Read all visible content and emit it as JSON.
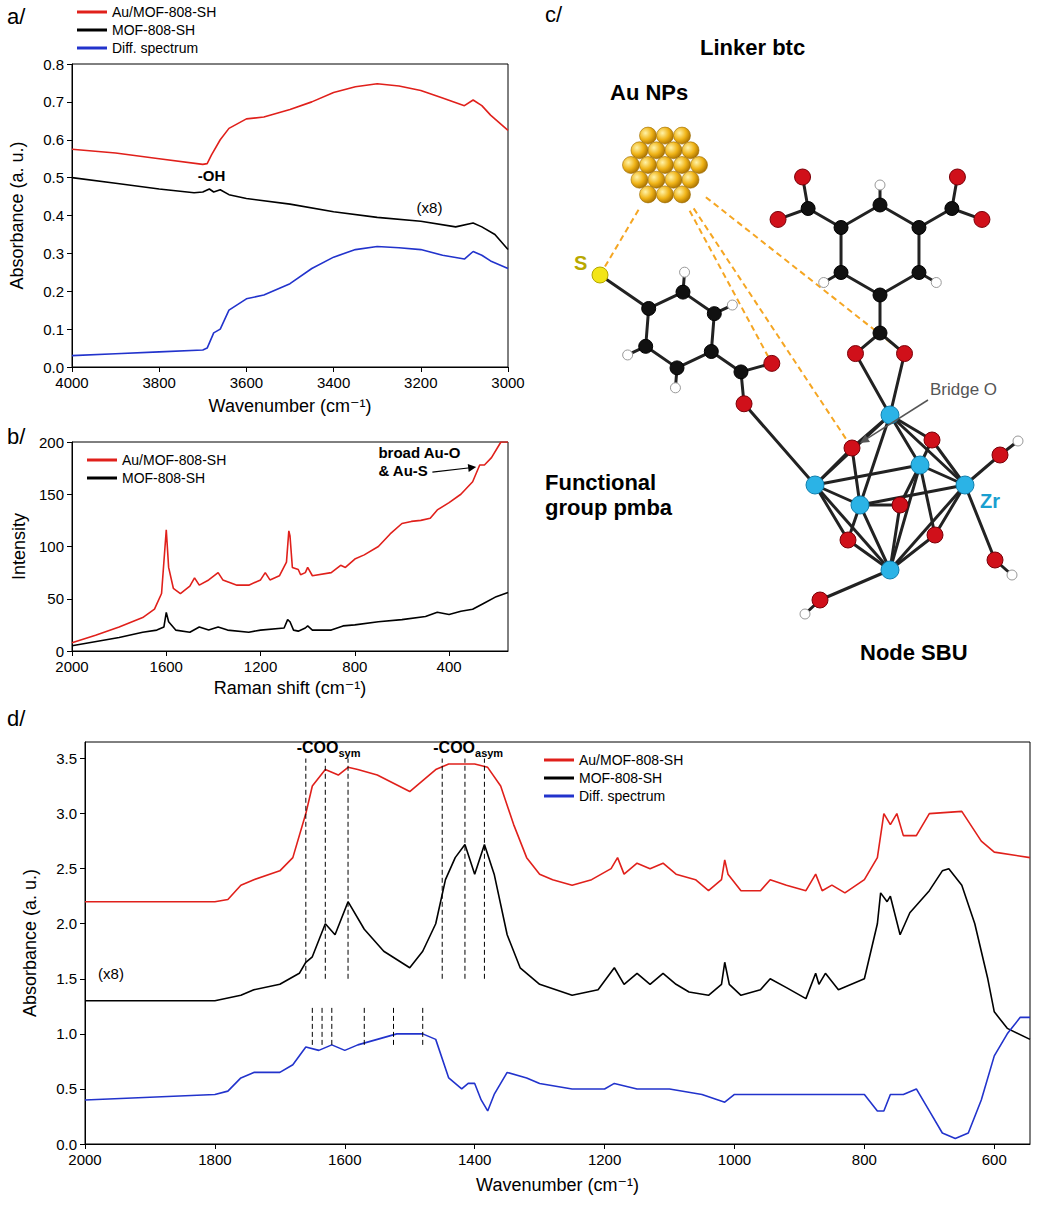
{
  "chart_data": [
    {
      "type": "line",
      "title": "a/",
      "x_label": "Wavenumber (cm⁻¹)",
      "y_label": "Absorbance (a. u.)",
      "xlim": [
        4000,
        3000
      ],
      "xticks": [
        4000,
        3800,
        3600,
        3400,
        3200,
        3000
      ],
      "ylim": [
        0,
        0.8
      ],
      "yticks": [
        {
          "value": 0,
          "label": "0.0"
        },
        0.1,
        0.2,
        0.3,
        0.4,
        0.5,
        0.6,
        0.7,
        0.8
      ],
      "grid": false,
      "legend": "above left",
      "series": [
        {
          "name": "Au/MOF-808-SH",
          "color": "#e0201b",
          "x": [
            4000,
            3900,
            3800,
            3700,
            3690,
            3680,
            3660,
            3640,
            3600,
            3560,
            3500,
            3450,
            3400,
            3350,
            3300,
            3250,
            3200,
            3150,
            3100,
            3080,
            3060,
            3040,
            3000
          ],
          "values": [
            0.575,
            0.565,
            0.55,
            0.535,
            0.537,
            0.56,
            0.6,
            0.63,
            0.655,
            0.66,
            0.68,
            0.7,
            0.725,
            0.74,
            0.748,
            0.742,
            0.73,
            0.71,
            0.69,
            0.705,
            0.69,
            0.665,
            0.625
          ]
        },
        {
          "name": "MOF-808-SH",
          "color": "#000000",
          "x": [
            4000,
            3900,
            3800,
            3720,
            3700,
            3685,
            3675,
            3660,
            3640,
            3600,
            3500,
            3400,
            3300,
            3200,
            3120,
            3080,
            3060,
            3030,
            3000
          ],
          "values": [
            0.5,
            0.485,
            0.47,
            0.46,
            0.462,
            0.47,
            0.462,
            0.468,
            0.455,
            0.445,
            0.43,
            0.41,
            0.395,
            0.385,
            0.37,
            0.38,
            0.37,
            0.35,
            0.31
          ]
        },
        {
          "name": "Diff. spectrum",
          "color": "#2233cc",
          "x": [
            4000,
            3900,
            3800,
            3700,
            3690,
            3675,
            3660,
            3640,
            3600,
            3560,
            3500,
            3450,
            3400,
            3350,
            3300,
            3250,
            3200,
            3150,
            3100,
            3080,
            3060,
            3040,
            3000
          ],
          "values": [
            0.03,
            0.035,
            0.04,
            0.045,
            0.05,
            0.09,
            0.1,
            0.15,
            0.18,
            0.19,
            0.22,
            0.26,
            0.29,
            0.31,
            0.318,
            0.315,
            0.31,
            0.295,
            0.285,
            0.305,
            0.295,
            0.28,
            0.26
          ]
        }
      ],
      "annotations": [
        {
          "text": "-OH",
          "x": 3680,
          "y": 0.505
        },
        {
          "text": "(x8)",
          "x": 3180,
          "y": 0.42
        }
      ]
    },
    {
      "type": "line",
      "title": "b/",
      "x_label": "Raman shift (cm⁻¹)",
      "y_label": "Intensity",
      "xlim": [
        2000,
        150
      ],
      "xticks": [
        2000,
        1600,
        1200,
        800,
        400
      ],
      "ylim": [
        0,
        200
      ],
      "yticks": [
        0,
        50,
        100,
        150,
        200
      ],
      "grid": false,
      "legend": "upper left",
      "series": [
        {
          "name": "Au/MOF-808-SH",
          "color": "#e0201b",
          "x": [
            2000,
            1900,
            1800,
            1700,
            1650,
            1620,
            1600,
            1590,
            1570,
            1540,
            1500,
            1480,
            1460,
            1420,
            1380,
            1360,
            1300,
            1250,
            1200,
            1180,
            1160,
            1120,
            1090,
            1080,
            1075,
            1065,
            1040,
            1030,
            1010,
            1000,
            980,
            900,
            860,
            840,
            800,
            760,
            700,
            650,
            600,
            560,
            520,
            480,
            450,
            400,
            350,
            300,
            270,
            250,
            220,
            180,
            150
          ],
          "values": [
            8,
            15,
            23,
            32,
            40,
            55,
            116,
            80,
            60,
            55,
            62,
            70,
            63,
            68,
            75,
            68,
            63,
            63,
            68,
            75,
            68,
            72,
            85,
            115,
            110,
            80,
            78,
            73,
            75,
            80,
            72,
            75,
            82,
            80,
            88,
            92,
            100,
            112,
            122,
            124,
            125,
            127,
            135,
            142,
            150,
            162,
            178,
            178,
            185,
            200,
            200
          ]
        },
        {
          "name": "MOF-808-SH",
          "color": "#000000",
          "x": [
            2000,
            1800,
            1700,
            1640,
            1610,
            1600,
            1590,
            1560,
            1500,
            1460,
            1420,
            1380,
            1340,
            1250,
            1200,
            1100,
            1085,
            1075,
            1060,
            1040,
            1010,
            1000,
            980,
            900,
            850,
            800,
            700,
            600,
            500,
            450,
            400,
            350,
            300,
            250,
            200,
            150
          ],
          "values": [
            5,
            13,
            18,
            20,
            23,
            37,
            28,
            20,
            18,
            23,
            20,
            23,
            20,
            18,
            20,
            22,
            30,
            28,
            20,
            19,
            22,
            24,
            20,
            20,
            24,
            25,
            28,
            30,
            33,
            37,
            35,
            38,
            40,
            46,
            52,
            56
          ]
        }
      ],
      "annotations": [
        {
          "text": "broad Au-O & Au-S",
          "x": 700,
          "y": 197,
          "arrow_to": [
            285,
            176
          ]
        }
      ]
    },
    {
      "type": "line",
      "title": "d/",
      "x_label": "Wavenumber (cm⁻¹)",
      "y_label": "Absorbance (a. u.)",
      "xlim": [
        2000,
        545
      ],
      "xticks": [
        2000,
        1800,
        1600,
        1400,
        1200,
        1000,
        800,
        600
      ],
      "ylim": [
        0,
        3.65
      ],
      "yticks": [
        {
          "value": 0,
          "label": "0.0"
        },
        0.5,
        {
          "value": 1,
          "label": "1.0"
        },
        1.5,
        {
          "value": 2,
          "label": "2.0"
        },
        2.5,
        {
          "value": 3,
          "label": "3.0"
        },
        3.5
      ],
      "grid": false,
      "legend": "upper center",
      "series": [
        {
          "name": "Au/MOF-808-SH",
          "color": "#e0201b",
          "x": [
            2000,
            1800,
            1780,
            1760,
            1740,
            1700,
            1680,
            1660,
            1650,
            1630,
            1610,
            1595,
            1580,
            1550,
            1500,
            1480,
            1460,
            1440,
            1420,
            1400,
            1380,
            1360,
            1340,
            1320,
            1300,
            1280,
            1250,
            1220,
            1190,
            1180,
            1170,
            1150,
            1130,
            1110,
            1090,
            1060,
            1040,
            1020,
            1015,
            1010,
            990,
            960,
            945,
            920,
            890,
            875,
            865,
            850,
            830,
            800,
            780,
            770,
            760,
            750,
            740,
            720,
            700,
            650,
            620,
            600,
            545
          ],
          "values": [
            2.2,
            2.2,
            2.22,
            2.35,
            2.4,
            2.48,
            2.6,
            3.0,
            3.25,
            3.4,
            3.35,
            3.42,
            3.4,
            3.35,
            3.2,
            3.3,
            3.4,
            3.45,
            3.45,
            3.45,
            3.42,
            3.25,
            2.9,
            2.6,
            2.45,
            2.4,
            2.35,
            2.4,
            2.5,
            2.6,
            2.45,
            2.55,
            2.5,
            2.55,
            2.45,
            2.4,
            2.3,
            2.4,
            2.58,
            2.45,
            2.3,
            2.3,
            2.4,
            2.35,
            2.3,
            2.45,
            2.3,
            2.35,
            2.28,
            2.4,
            2.6,
            3.0,
            2.9,
            3.0,
            2.8,
            2.8,
            3.0,
            3.02,
            2.75,
            2.65,
            2.6
          ]
        },
        {
          "name": "MOF-808-SH",
          "color": "#000000",
          "x": [
            2000,
            1800,
            1760,
            1740,
            1700,
            1670,
            1660,
            1650,
            1630,
            1615,
            1595,
            1570,
            1540,
            1500,
            1480,
            1460,
            1445,
            1430,
            1415,
            1400,
            1385,
            1370,
            1350,
            1330,
            1300,
            1250,
            1210,
            1185,
            1170,
            1150,
            1130,
            1110,
            1090,
            1070,
            1040,
            1020,
            1015,
            1008,
            990,
            960,
            945,
            920,
            890,
            875,
            870,
            860,
            840,
            800,
            780,
            775,
            765,
            760,
            745,
            730,
            700,
            680,
            670,
            650,
            630,
            610,
            600,
            580,
            545
          ],
          "values": [
            1.3,
            1.3,
            1.35,
            1.4,
            1.45,
            1.55,
            1.65,
            1.7,
            2.0,
            1.9,
            2.2,
            1.95,
            1.75,
            1.6,
            1.75,
            2.0,
            2.4,
            2.6,
            2.72,
            2.45,
            2.72,
            2.45,
            1.9,
            1.6,
            1.45,
            1.35,
            1.4,
            1.6,
            1.45,
            1.55,
            1.45,
            1.55,
            1.45,
            1.38,
            1.35,
            1.45,
            1.65,
            1.45,
            1.35,
            1.4,
            1.5,
            1.42,
            1.32,
            1.55,
            1.45,
            1.55,
            1.4,
            1.5,
            2.0,
            2.28,
            2.2,
            2.25,
            1.9,
            2.1,
            2.3,
            2.48,
            2.5,
            2.35,
            2.0,
            1.5,
            1.2,
            1.05,
            0.95
          ]
        },
        {
          "name": "Diff. spectrum",
          "color": "#2233cc",
          "x": [
            2000,
            1800,
            1780,
            1760,
            1740,
            1700,
            1680,
            1660,
            1640,
            1620,
            1600,
            1580,
            1550,
            1520,
            1480,
            1460,
            1440,
            1420,
            1410,
            1400,
            1390,
            1380,
            1370,
            1350,
            1320,
            1300,
            1250,
            1200,
            1185,
            1150,
            1100,
            1050,
            1015,
            1000,
            900,
            800,
            780,
            770,
            760,
            740,
            720,
            700,
            680,
            660,
            640,
            620,
            600,
            580,
            560,
            545
          ],
          "values": [
            0.4,
            0.45,
            0.48,
            0.6,
            0.65,
            0.65,
            0.72,
            0.88,
            0.85,
            0.9,
            0.85,
            0.9,
            0.95,
            1.0,
            1.0,
            0.95,
            0.6,
            0.5,
            0.55,
            0.55,
            0.4,
            0.3,
            0.45,
            0.65,
            0.6,
            0.55,
            0.5,
            0.5,
            0.55,
            0.5,
            0.5,
            0.45,
            0.38,
            0.45,
            0.45,
            0.45,
            0.3,
            0.3,
            0.45,
            0.45,
            0.5,
            0.3,
            0.1,
            0.05,
            0.1,
            0.4,
            0.8,
            1.0,
            1.15,
            1.15
          ]
        }
      ],
      "annotations": [
        {
          "text": "-COO",
          "subscript": "sym",
          "x": 1625,
          "y": 3.6
        },
        {
          "text": "-COO",
          "subscript": "asym",
          "x": 1410,
          "y": 3.6
        },
        {
          "text": "(x8)",
          "x": 1960,
          "y": 1.55
        }
      ],
      "vlines": [
        {
          "x": 1660,
          "y": [
            1.5,
            3.5
          ]
        },
        {
          "x": 1630,
          "y": [
            1.5,
            3.5
          ]
        },
        {
          "x": 1595,
          "y": [
            1.5,
            3.5
          ]
        },
        {
          "x": 1450,
          "y": [
            1.5,
            3.5
          ]
        },
        {
          "x": 1415,
          "y": [
            1.5,
            3.5
          ]
        },
        {
          "x": 1385,
          "y": [
            1.5,
            3.5
          ]
        },
        {
          "x": 1650,
          "y": [
            0.9,
            1.25
          ]
        },
        {
          "x": 1635,
          "y": [
            0.9,
            1.25
          ]
        },
        {
          "x": 1620,
          "y": [
            0.9,
            1.25
          ]
        },
        {
          "x": 1570,
          "y": [
            0.9,
            1.25
          ]
        },
        {
          "x": 1525,
          "y": [
            0.9,
            1.25
          ]
        },
        {
          "x": 1480,
          "y": [
            0.9,
            1.25
          ]
        }
      ]
    }
  ],
  "diagram": {
    "title": "c/",
    "linker": "Linker btc",
    "nanoparticles": "Au NPs",
    "sulfur": "S",
    "bridge": "Bridge O",
    "metal": "Zr",
    "functional_group": "Functional group pmba",
    "node": "Node SBU"
  }
}
